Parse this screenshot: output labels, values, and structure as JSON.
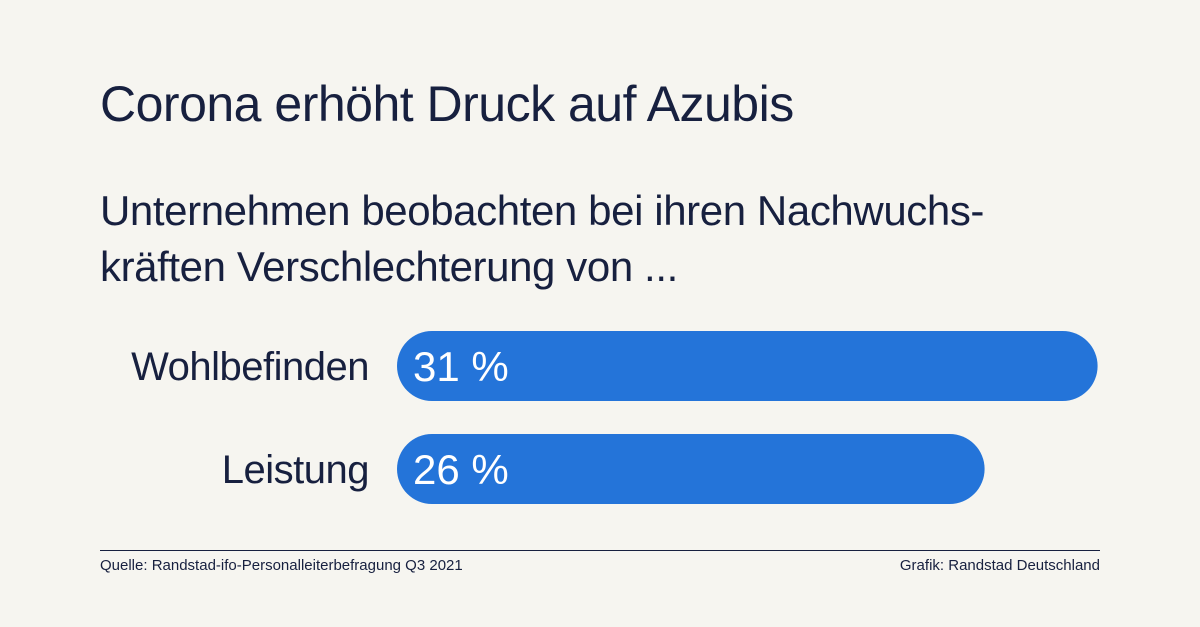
{
  "title": "Corona erhöht Druck auf Azubis",
  "subtitle": {
    "line1": "Unternehmen beobachten bei ihren Nachwuchs-",
    "line2": "kräften Verschlechterung von ..."
  },
  "chart_data": {
    "type": "bar",
    "orientation": "horizontal",
    "categories": [
      "Wohlbefinden",
      "Leistung"
    ],
    "values": [
      31,
      26
    ],
    "value_labels": [
      "31 %",
      "26 %"
    ],
    "unit": "%",
    "bar_color": "#2474d9",
    "grid": false,
    "legend": "none"
  },
  "footer": {
    "source": "Quelle: Randstad-ifo-Personalleiterbefragung Q3 2021",
    "credit": "Grafik: Randstad Deutschland"
  },
  "colors": {
    "background": "#f6f5f0",
    "text": "#17203f",
    "bar": "#2474d9",
    "bar_label": "#ffffff"
  }
}
